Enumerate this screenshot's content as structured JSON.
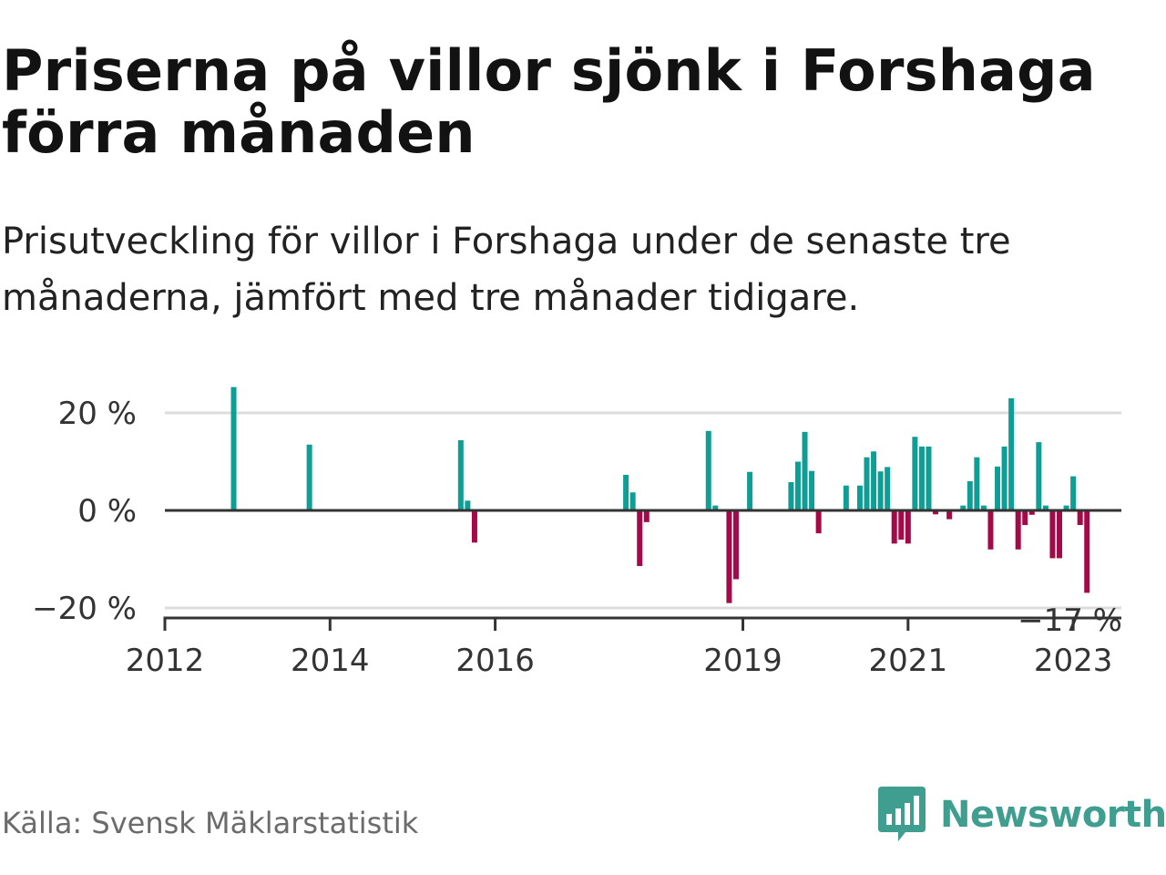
{
  "title": "Priserna på villor sjönk i Forshaga förra månaden",
  "subtitle": "Prisutveckling för villor i Forshaga under de senaste tre månaderna, jämfört med tre månader tidigare.",
  "source": "Källa: Svensk Mäklarstatistik",
  "brand": "Newsworthy",
  "colors": {
    "positive": "#0f9e95",
    "negative": "#a30a47",
    "brand": "#3f9e8f"
  },
  "chart_data": {
    "type": "bar",
    "title": "Priserna på villor sjönk i Forshaga förra månaden",
    "subtitle": "Prisutveckling för villor i Forshaga under de senaste tre månaderna, jämfört med tre månader tidigare.",
    "xlabel": "",
    "ylabel": "",
    "ylim": [
      -21,
      27
    ],
    "xlim": [
      "2012-01",
      "2023-08"
    ],
    "grid": true,
    "y_ticks": [
      {
        "value": 20,
        "label": "20 %"
      },
      {
        "value": 0,
        "label": "0 %"
      },
      {
        "value": -20,
        "label": "−20 %"
      }
    ],
    "x_ticks": [
      {
        "date": "2012-01",
        "label": "2012"
      },
      {
        "date": "2014-01",
        "label": "2014"
      },
      {
        "date": "2016-01",
        "label": "2016"
      },
      {
        "date": "2019-01",
        "label": "2019"
      },
      {
        "date": "2021-01",
        "label": "2021"
      },
      {
        "date": "2023-01",
        "label": "2023"
      }
    ],
    "last_value_label": "−17 %",
    "series": [
      {
        "values": [
          {
            "date": "2012-11",
            "value": 25.3
          },
          {
            "date": "2013-10",
            "value": 13.5
          },
          {
            "date": "2015-08",
            "value": 14.4
          },
          {
            "date": "2015-09",
            "value": 2.0
          },
          {
            "date": "2015-10",
            "value": -6.6
          },
          {
            "date": "2017-08",
            "value": 7.3
          },
          {
            "date": "2017-09",
            "value": 3.7
          },
          {
            "date": "2017-10",
            "value": -11.4
          },
          {
            "date": "2017-11",
            "value": -2.4
          },
          {
            "date": "2018-08",
            "value": 16.3
          },
          {
            "date": "2018-09",
            "value": 1.0
          },
          {
            "date": "2018-11",
            "value": -19.0
          },
          {
            "date": "2018-12",
            "value": -14.1
          },
          {
            "date": "2019-02",
            "value": 7.9
          },
          {
            "date": "2019-08",
            "value": 5.8
          },
          {
            "date": "2019-09",
            "value": 10.0
          },
          {
            "date": "2019-10",
            "value": 16.1
          },
          {
            "date": "2019-11",
            "value": 8.1
          },
          {
            "date": "2019-12",
            "value": -4.7
          },
          {
            "date": "2020-04",
            "value": 5.1
          },
          {
            "date": "2020-06",
            "value": 5.1
          },
          {
            "date": "2020-07",
            "value": 10.9
          },
          {
            "date": "2020-08",
            "value": 12.1
          },
          {
            "date": "2020-09",
            "value": 8.0
          },
          {
            "date": "2020-10",
            "value": 8.9
          },
          {
            "date": "2020-11",
            "value": -6.8
          },
          {
            "date": "2020-12",
            "value": -6.0
          },
          {
            "date": "2021-01",
            "value": -6.8
          },
          {
            "date": "2021-02",
            "value": 15.1
          },
          {
            "date": "2021-03",
            "value": 13.1
          },
          {
            "date": "2021-04",
            "value": 13.1
          },
          {
            "date": "2021-05",
            "value": -0.8
          },
          {
            "date": "2021-07",
            "value": -1.8
          },
          {
            "date": "2021-09",
            "value": 1.0
          },
          {
            "date": "2021-10",
            "value": 6.0
          },
          {
            "date": "2021-11",
            "value": 10.9
          },
          {
            "date": "2021-12",
            "value": 1.0
          },
          {
            "date": "2022-01",
            "value": -8.0
          },
          {
            "date": "2022-02",
            "value": 9.0
          },
          {
            "date": "2022-03",
            "value": 13.1
          },
          {
            "date": "2022-04",
            "value": 23.0
          },
          {
            "date": "2022-05",
            "value": -8.0
          },
          {
            "date": "2022-06",
            "value": -3.0
          },
          {
            "date": "2022-07",
            "value": -0.9
          },
          {
            "date": "2022-08",
            "value": 14.0
          },
          {
            "date": "2022-09",
            "value": 1.0
          },
          {
            "date": "2022-10",
            "value": -9.8
          },
          {
            "date": "2022-11",
            "value": -9.8
          },
          {
            "date": "2022-12",
            "value": 1.0
          },
          {
            "date": "2023-01",
            "value": 7.0
          },
          {
            "date": "2023-02",
            "value": -3.0
          },
          {
            "date": "2023-03",
            "value": -16.9
          }
        ]
      }
    ]
  }
}
